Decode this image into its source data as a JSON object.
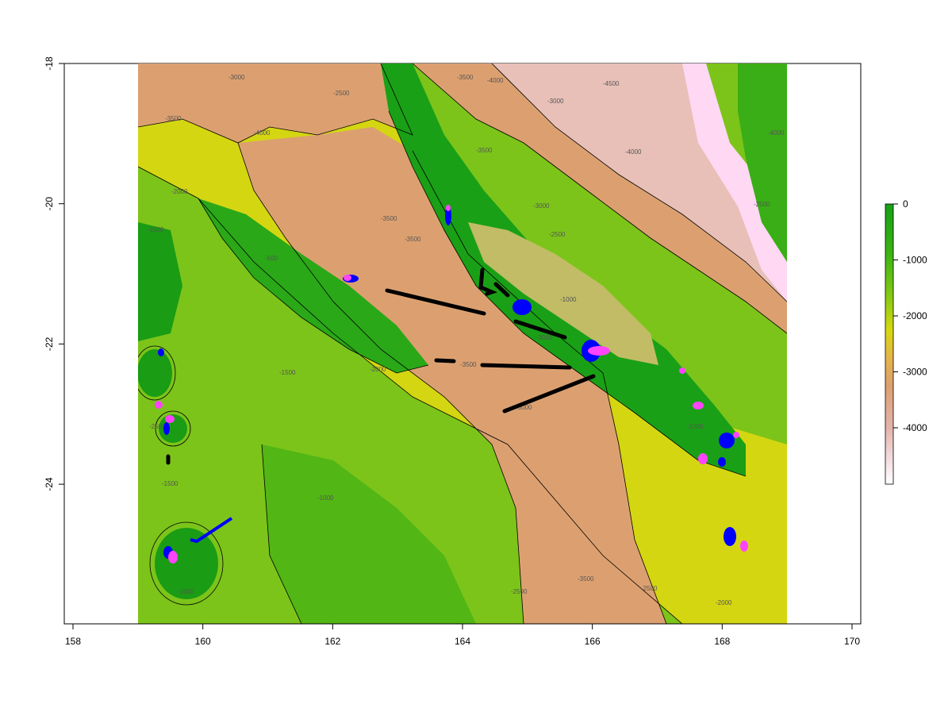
{
  "map": {
    "x_axis": {
      "ticks": [
        "158",
        "160",
        "162",
        "164",
        "166",
        "168",
        "170"
      ],
      "range": [
        158,
        170
      ]
    },
    "y_axis": {
      "ticks": [
        "-18",
        "-20",
        "-22",
        "-24"
      ]
    },
    "legend": {
      "ticks": [
        "0",
        "-1000",
        "-2000",
        "-3000",
        "-4000"
      ],
      "gradient": [
        "#16a016",
        "#3cb414",
        "#80c814",
        "#d6d810",
        "#e4b44a",
        "#dca070",
        "#e4b4ac",
        "#f4e0e4",
        "#ffffff"
      ]
    },
    "contour_labels": [
      "-2500",
      "-3000",
      "-3500",
      "-4000",
      "-3500",
      "-3000",
      "-4000",
      "-4000",
      "-4500",
      "-3000",
      "-3500",
      "-3500",
      "-2500",
      "-3000",
      "-2500",
      "-3500",
      "-3000",
      "-3500",
      "-2000",
      "-1500",
      "-1500",
      "-1000",
      "-1000",
      "-2500",
      "-3500",
      "-2500",
      "-2000",
      "-2500",
      "-500",
      "-1000",
      "-1500",
      "-2000",
      "-4000",
      "-1000"
    ],
    "colors": {
      "deep": "#dca070",
      "mid": "#d6d810",
      "shallow": "#16a016",
      "lagoon": "#c2bc66",
      "abyss": "#ffd8f4",
      "track_black": "#000000",
      "track_blue": "#0000ff",
      "highlight_pink": "#ff44ff"
    }
  }
}
